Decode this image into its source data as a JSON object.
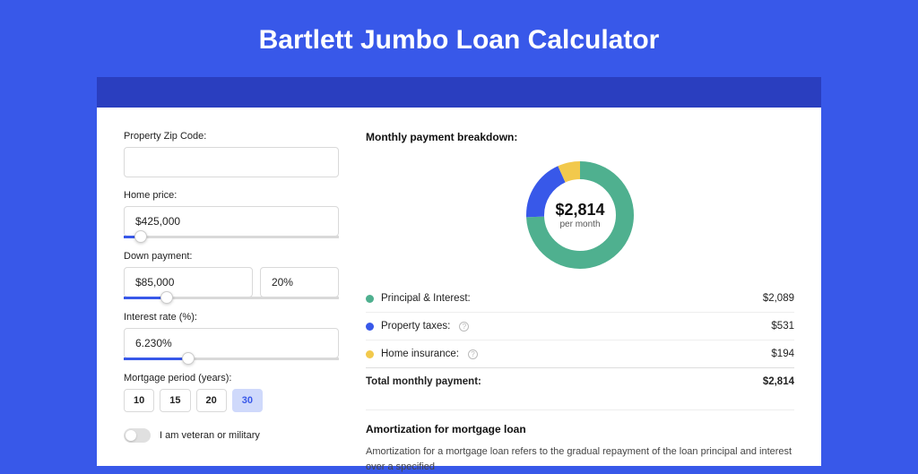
{
  "title": "Bartlett Jumbo Loan Calculator",
  "colors": {
    "page_bg": "#3858e9",
    "banner_bg": "#2a3ebf",
    "card_bg": "#ffffff",
    "accent": "#3858e9"
  },
  "form": {
    "zip": {
      "label": "Property Zip Code:",
      "value": ""
    },
    "home_price": {
      "label": "Home price:",
      "value": "$425,000",
      "slider_pct": 8
    },
    "down_payment": {
      "label": "Down payment:",
      "amount": "$85,000",
      "percent": "20%",
      "slider_pct": 20
    },
    "interest_rate": {
      "label": "Interest rate (%):",
      "value": "6.230%",
      "slider_pct": 30
    },
    "mortgage_period": {
      "label": "Mortgage period (years):",
      "options": [
        "10",
        "15",
        "20",
        "30"
      ],
      "selected": "30"
    },
    "veteran": {
      "label": "I am veteran or military",
      "checked": false
    }
  },
  "breakdown": {
    "title": "Monthly payment breakdown:",
    "center_amount": "$2,814",
    "center_sub": "per month",
    "donut": {
      "stroke_width": 20,
      "radius": 50,
      "slices": [
        {
          "key": "principal_interest",
          "color": "#4fb08f",
          "value": 2089
        },
        {
          "key": "property_taxes",
          "color": "#3858e9",
          "value": 531
        },
        {
          "key": "home_insurance",
          "color": "#f2c94c",
          "value": 194
        }
      ]
    },
    "legend": [
      {
        "label": "Principal & Interest:",
        "value": "$2,089",
        "color": "#4fb08f",
        "info": false
      },
      {
        "label": "Property taxes:",
        "value": "$531",
        "color": "#3858e9",
        "info": true
      },
      {
        "label": "Home insurance:",
        "value": "$194",
        "color": "#f2c94c",
        "info": true
      }
    ],
    "total": {
      "label": "Total monthly payment:",
      "value": "$2,814"
    }
  },
  "amortization": {
    "title": "Amortization for mortgage loan",
    "text": "Amortization for a mortgage loan refers to the gradual repayment of the loan principal and interest over a specified"
  }
}
